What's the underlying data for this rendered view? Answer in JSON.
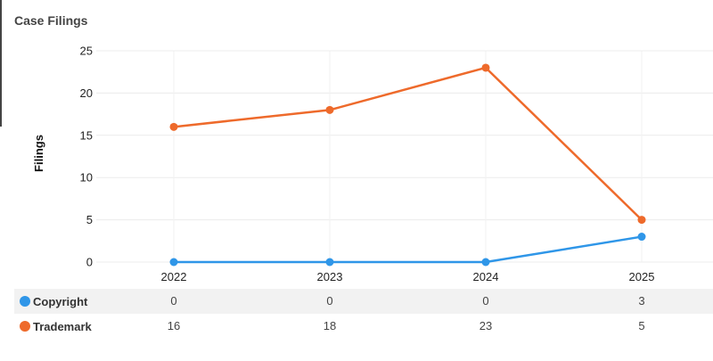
{
  "title": "Case Filings",
  "chart_data": {
    "type": "line",
    "categories": [
      "2022",
      "2023",
      "2024",
      "2025"
    ],
    "ylabel": "Filings",
    "xlabel": "",
    "ylim": [
      0,
      25
    ],
    "yticks": [
      0,
      5,
      10,
      15,
      20,
      25
    ],
    "grid": true,
    "legend": "data-table",
    "series": [
      {
        "name": "Copyright",
        "color": "#2f96e8",
        "values": [
          0,
          0,
          0,
          3
        ]
      },
      {
        "name": "Trademark",
        "color": "#ee6a2b",
        "values": [
          16,
          18,
          23,
          5
        ]
      }
    ]
  }
}
